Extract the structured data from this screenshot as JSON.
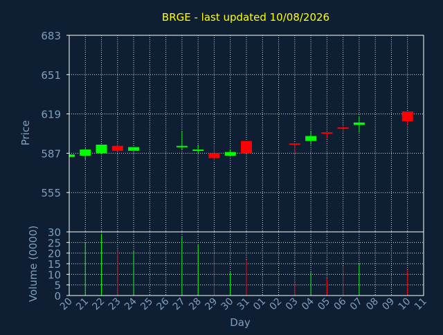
{
  "chart_data": {
    "type": "candlestick",
    "title": "BRGE - last updated 10/08/2026",
    "price_panel": {
      "ylabel": "Price",
      "ylim": [
        523,
        683
      ],
      "yticks": [
        "683",
        "651",
        "619",
        "587",
        "555"
      ]
    },
    "volume_panel": {
      "ylabel": "Volume (0000)",
      "ylim": [
        0,
        30
      ],
      "yticks": [
        "30",
        "25",
        "20",
        "15",
        "10",
        "5",
        "0"
      ]
    },
    "xlabel": "Day",
    "x_ticks": [
      "20",
      "21",
      "22",
      "23",
      "24",
      "25",
      "26",
      "27",
      "28",
      "29",
      "30",
      "31",
      "01",
      "02",
      "03",
      "04",
      "05",
      "06",
      "07",
      "08",
      "09",
      "10",
      "11"
    ],
    "grid": true,
    "colors": {
      "background": "#0f1f33",
      "title": "#ffff00",
      "label": "#7f9fbf",
      "grid": "#ffffff",
      "up": "#00ff00",
      "down": "#ff0000"
    },
    "candles": [
      {
        "day": "20",
        "open": 584,
        "high": 587,
        "low": 583,
        "close": 586,
        "volume": 0
      },
      {
        "day": "21",
        "open": 585,
        "high": 591,
        "low": 581,
        "close": 590,
        "volume": 25
      },
      {
        "day": "22",
        "open": 587,
        "high": 594,
        "low": 586,
        "close": 594,
        "volume": 29
      },
      {
        "day": "23",
        "open": 593,
        "high": 596,
        "low": 588,
        "close": 589,
        "volume": 21
      },
      {
        "day": "24",
        "open": 589,
        "high": 592,
        "low": 589,
        "close": 592,
        "volume": 21
      },
      {
        "day": "27",
        "open": 592,
        "high": 605,
        "low": 590,
        "close": 593,
        "volume": 28
      },
      {
        "day": "28",
        "open": 590,
        "high": 594,
        "low": 587,
        "close": 590,
        "volume": 24
      },
      {
        "day": "29",
        "open": 587,
        "high": 594,
        "low": 581,
        "close": 583,
        "volume": 20
      },
      {
        "day": "30",
        "open": 585,
        "high": 590,
        "low": 585,
        "close": 588,
        "volume": 11
      },
      {
        "day": "31",
        "open": 597,
        "high": 597,
        "low": 587,
        "close": 587,
        "volume": 17
      },
      {
        "day": "03",
        "open": 595,
        "high": 595,
        "low": 587,
        "close": 594,
        "volume": 6
      },
      {
        "day": "04",
        "open": 597,
        "high": 605,
        "low": 594,
        "close": 601,
        "volume": 11
      },
      {
        "day": "05",
        "open": 604,
        "high": 604,
        "low": 599,
        "close": 603,
        "volume": 8
      },
      {
        "day": "06",
        "open": 608,
        "high": 609,
        "low": 604,
        "close": 607,
        "volume": 14
      },
      {
        "day": "07",
        "open": 610,
        "high": 617,
        "low": 604,
        "close": 612,
        "volume": 15
      },
      {
        "day": "10",
        "open": 621,
        "high": 621,
        "low": 610,
        "close": 613,
        "volume": 12
      }
    ]
  }
}
